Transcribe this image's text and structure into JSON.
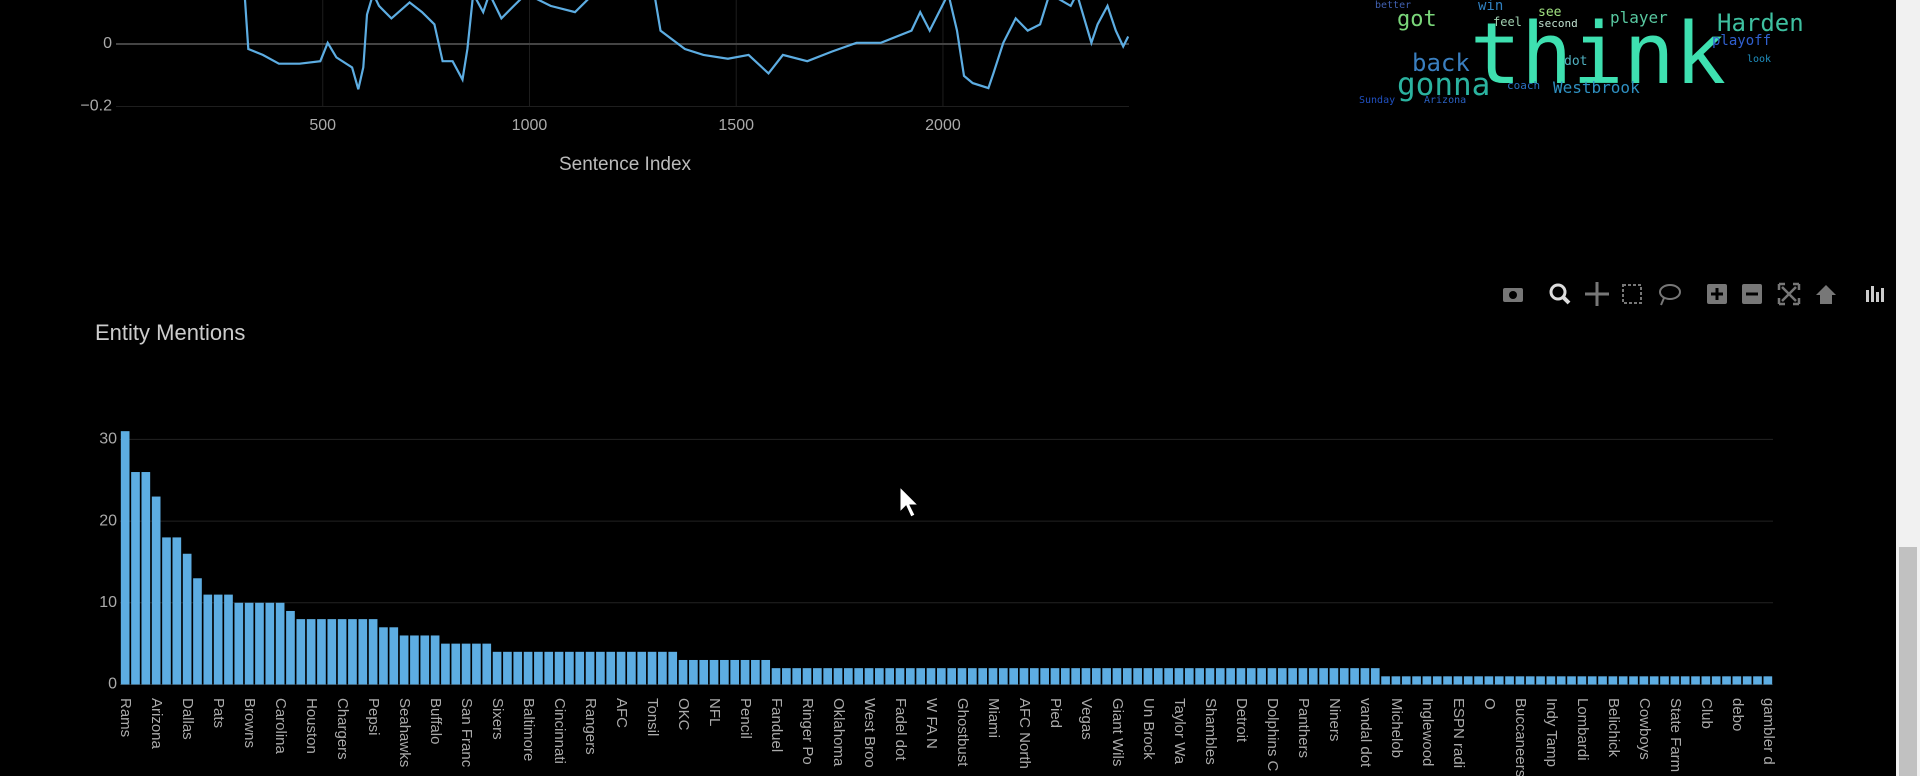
{
  "chart_data": [
    {
      "type": "line",
      "xlabel": "Sentence Index",
      "color": "#5dade2",
      "x": [
        311,
        320,
        355,
        394,
        444,
        494,
        512,
        533,
        571,
        586,
        598,
        607,
        622,
        636,
        666,
        710,
        740,
        770,
        790,
        814,
        838,
        850,
        864,
        888,
        903,
        932,
        962,
        992,
        1051,
        1110,
        1140,
        1154,
        1302,
        1317,
        1376,
        1421,
        1480,
        1530,
        1578,
        1613,
        1672,
        1732,
        1791,
        1850,
        1924,
        1945,
        1968,
        2013,
        2034,
        2051,
        2072,
        2110,
        2122,
        2146,
        2176,
        2205,
        2235,
        2258,
        2309,
        2324,
        2359,
        2374,
        2398,
        2418,
        2436,
        2448
      ],
      "values": [
        0.161,
        -0.016,
        -0.035,
        -0.063,
        -0.063,
        -0.055,
        0.004,
        -0.043,
        -0.075,
        -0.145,
        -0.075,
        0.094,
        0.161,
        0.122,
        0.082,
        0.133,
        0.102,
        0.063,
        -0.055,
        -0.055,
        -0.114,
        -0.016,
        0.161,
        0.102,
        0.161,
        0.082,
        0.122,
        0.161,
        0.122,
        0.102,
        0.141,
        0.161,
        0.161,
        0.043,
        -0.016,
        -0.035,
        -0.047,
        -0.035,
        -0.094,
        -0.035,
        -0.055,
        -0.024,
        0.004,
        0.004,
        0.043,
        0.102,
        0.043,
        0.161,
        0.043,
        -0.102,
        -0.125,
        -0.141,
        -0.094,
        0.004,
        0.082,
        0.043,
        0.063,
        0.161,
        0.122,
        0.161,
        0.004,
        0.063,
        0.122,
        0.043,
        -0.008,
        0.024
      ],
      "xlim": [
        0,
        2450
      ],
      "xticks": [
        500,
        1000,
        1500,
        2000
      ],
      "ylim": [
        -0.2,
        0.2
      ],
      "yticks": [
        {
          "value": -0.2,
          "label": "−0.2"
        },
        0
      ],
      "grid": true
    },
    {
      "type": "bar",
      "title": "Entity Mentions",
      "color": "#5dade2",
      "categories": [
        "Rams",
        null,
        null,
        "Arizona",
        null,
        null,
        "Dallas",
        null,
        null,
        "Pats",
        null,
        null,
        "Browns",
        null,
        null,
        "Carolina",
        null,
        null,
        "Houston",
        null,
        null,
        "Chargers",
        null,
        null,
        "Pepsi",
        null,
        null,
        "Seahawks",
        null,
        null,
        "Buffalo",
        null,
        null,
        "San Franc",
        null,
        null,
        "Sixers",
        null,
        null,
        "Baltimore",
        null,
        null,
        "Cincinnati",
        null,
        null,
        "Rangers",
        null,
        null,
        "AFC",
        null,
        null,
        "Tonsil",
        null,
        null,
        "OKC",
        null,
        null,
        "NFL",
        null,
        null,
        "Pencil",
        null,
        null,
        "Fanduel",
        null,
        null,
        "Ringer Po",
        null,
        null,
        "Oklahoma",
        null,
        null,
        "West Broo",
        null,
        null,
        "Fadel dot",
        null,
        null,
        "W FA N",
        null,
        null,
        "Ghostbust",
        null,
        null,
        "Miami",
        null,
        null,
        "AFC North",
        null,
        null,
        "Pied",
        null,
        null,
        "Vegas",
        null,
        null,
        "Giant Wils",
        null,
        null,
        "Un Brock",
        null,
        null,
        "Taylor Wa",
        null,
        null,
        "Shambles",
        null,
        null,
        "Detroit",
        null,
        null,
        "Dolphins C",
        null,
        null,
        "Panthers",
        null,
        null,
        "Niners",
        null,
        null,
        "vandal dot",
        null,
        null,
        "Michelob",
        null,
        null,
        "Inglewood",
        null,
        null,
        "ESPN radi",
        null,
        null,
        "O",
        null,
        null,
        "Buccaneers",
        null,
        null,
        "Indy Tamp",
        null,
        null,
        "Lombardi",
        null,
        null,
        "Belichick",
        null,
        null,
        "Cowboys",
        null,
        null,
        "State Farm",
        null,
        null,
        "Club",
        null,
        null,
        "debo",
        null,
        null,
        "gambler d"
      ],
      "values": [
        31,
        26,
        26,
        23,
        18,
        18,
        16,
        13,
        11,
        11,
        11,
        10,
        10,
        10,
        10,
        10,
        9,
        8,
        8,
        8,
        8,
        8,
        8,
        8,
        8,
        7,
        7,
        6,
        6,
        6,
        6,
        5,
        5,
        5,
        5,
        5,
        4,
        4,
        4,
        4,
        4,
        4,
        4,
        4,
        4,
        4,
        4,
        4,
        4,
        4,
        4,
        4,
        4,
        4,
        3,
        3,
        3,
        3,
        3,
        3,
        3,
        3,
        3,
        2,
        2,
        2,
        2,
        2,
        2,
        2,
        2,
        2,
        2,
        2,
        2,
        2,
        2,
        2,
        2,
        2,
        2,
        2,
        2,
        2,
        2,
        2,
        2,
        2,
        2,
        2,
        2,
        2,
        2,
        2,
        2,
        2,
        2,
        2,
        2,
        2,
        2,
        2,
        2,
        2,
        2,
        2,
        2,
        2,
        2,
        2,
        2,
        2,
        2,
        2,
        2,
        2,
        2,
        2,
        2,
        2,
        2,
        2,
        1,
        1,
        1,
        1,
        1,
        1,
        1,
        1,
        1,
        1,
        1,
        1,
        1,
        1,
        1,
        1,
        1,
        1,
        1,
        1,
        1,
        1,
        1,
        1,
        1,
        1,
        1,
        1,
        1,
        1,
        1,
        1,
        1,
        1,
        1,
        1,
        1,
        1
      ],
      "ylim": [
        0,
        32
      ],
      "yticks": [
        0,
        10,
        20,
        30
      ],
      "grid": true
    }
  ],
  "wordcloud": {
    "words": [
      "think",
      "Harden",
      "gonna",
      "back",
      "got",
      "Westbrook",
      "player",
      "playoff",
      "win",
      "see",
      "second",
      "feel",
      "dot",
      "coach",
      "Sunday",
      "Arizona",
      "better",
      "look"
    ]
  }
}
